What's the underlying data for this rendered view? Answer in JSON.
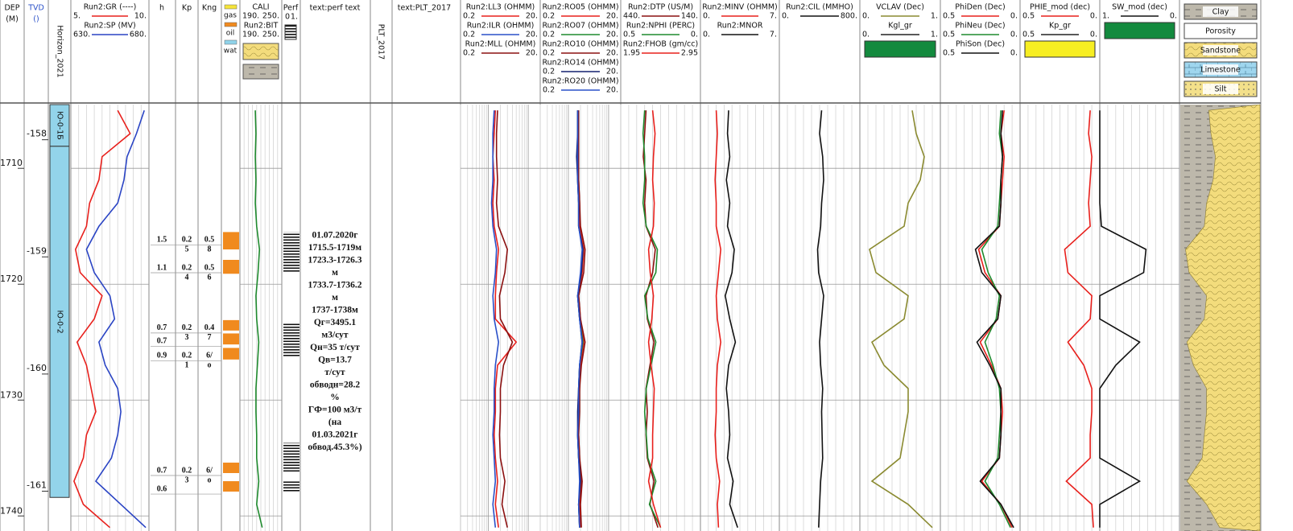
{
  "depth_track": {
    "title": "DEP",
    "unit": "(M)",
    "ticks": [
      1710,
      1720,
      1730,
      1740
    ]
  },
  "depth_range": [
    1704.5,
    1741.3
  ],
  "tvd_track": {
    "title": "TVD",
    "unit": "()",
    "lim": [
      -157.7,
      -161.34
    ],
    "ticks": [
      -158,
      -159,
      -160,
      -161
    ]
  },
  "horizon_track": {
    "title": "Horizon_2021",
    "color": "#93d4ea",
    "zones": [
      {
        "label": "Ю-0-1Б",
        "top": 1704.5,
        "base": 1708.1
      },
      {
        "label": "Ю-0-2",
        "top": 1708.1,
        "base": 1738.4
      }
    ]
  },
  "curve_depths": [
    1705,
    1707,
    1709,
    1711,
    1713,
    1715,
    1717,
    1719,
    1721,
    1723,
    1725,
    1727,
    1729,
    1731,
    1733,
    1735,
    1737,
    1739,
    1741
  ],
  "curve_tracks": [
    {
      "log": false,
      "curves": [
        {
          "name": "Run2:GR (----)",
          "color": "#e8201c",
          "scale": [
            {
              "value": 5,
              "label": "5."
            },
            {
              "value": 10,
              "label": "10."
            }
          ],
          "values": [
            8.0,
            8.8,
            7.0,
            6.8,
            6.2,
            6.0,
            5.3,
            5.6,
            7.0,
            6.5,
            5.4,
            6.0,
            6.3,
            6.6,
            6.0,
            5.8,
            5.2,
            5.8,
            7.5
          ]
        },
        {
          "name": "Run2:SP (MV)",
          "color": "#2a44c4",
          "scale": [
            {
              "value": 630,
              "label": "630."
            },
            {
              "value": 680,
              "label": "680."
            }
          ],
          "values": [
            677,
            672,
            666,
            664,
            660,
            648,
            640,
            645,
            655,
            658,
            648,
            652,
            660,
            662,
            660,
            656,
            646,
            662,
            678
          ]
        }
      ]
    },
    {
      "log": false,
      "curves": [
        {
          "name": "CALI",
          "color": "#1f8a2e",
          "scale": [
            {
              "value": 190,
              "label": "190."
            },
            {
              "value": 250,
              "label": "250."
            }
          ],
          "values": [
            212,
            213,
            212,
            213,
            212,
            214,
            218,
            216,
            213,
            214,
            217,
            215,
            213,
            213,
            214,
            214,
            217,
            214,
            222
          ]
        },
        {
          "name": "Run2:BIT",
          "color": "#222222",
          "scale": [
            {
              "value": 190,
              "label": "190."
            },
            {
              "value": 250,
              "label": "250."
            }
          ]
        }
      ]
    },
    {
      "log": true,
      "curves": [
        {
          "name": "Run2:LL3 (OHMM)",
          "color": "#e8201c",
          "scale": [
            0.2,
            {
              "value": 20,
              "label": "20."
            }
          ],
          "values": [
            1.5,
            1.4,
            1.3,
            1.4,
            1.3,
            1.4,
            1.8,
            1.6,
            1.5,
            1.5,
            5.0,
            1.7,
            1.5,
            1.5,
            1.4,
            1.5,
            1.7,
            1.5,
            1.8
          ]
        },
        {
          "name": "Run2:ILR (OHMM)",
          "color": "#2a50c8",
          "scale": [
            0.2,
            {
              "value": 20,
              "label": "20."
            }
          ],
          "values": [
            1.4,
            1.3,
            1.3,
            1.3,
            1.2,
            1.3,
            1.6,
            1.5,
            1.3,
            1.4,
            1.8,
            1.5,
            1.4,
            1.4,
            1.3,
            1.4,
            1.5,
            1.3,
            1.5
          ]
        },
        {
          "name": "Run2:MLL (OHMM)",
          "color": "#8b1010",
          "scale": [
            0.2,
            {
              "value": 20,
              "label": "20."
            }
          ],
          "values": [
            1.7,
            1.6,
            1.6,
            1.7,
            1.6,
            1.8,
            3.0,
            2.6,
            1.9,
            2.0,
            4.0,
            2.4,
            2.0,
            2.0,
            1.9,
            2.0,
            2.6,
            2.2,
            3.0
          ]
        }
      ]
    },
    {
      "log": true,
      "curves": [
        {
          "name": "Run2:RO05 (OHMM)",
          "color": "#e8201c",
          "scale": [
            0.2,
            {
              "value": 20,
              "label": "20."
            }
          ],
          "values": [
            1.8,
            1.8,
            1.7,
            1.8,
            1.9,
            1.9,
            2.4,
            2.2,
            1.8,
            2.0,
            2.4,
            2.0,
            1.9,
            1.8,
            1.8,
            1.9,
            2.1,
            1.9,
            2.0
          ]
        },
        {
          "name": "Run2:RO07 (OHMM)",
          "color": "#1f8a2e",
          "scale": [
            0.2,
            {
              "value": 20,
              "label": "20."
            }
          ],
          "values": [
            1.7,
            1.7,
            1.7,
            1.7,
            1.8,
            1.8,
            2.3,
            2.1,
            1.7,
            1.9,
            2.3,
            1.9,
            1.8,
            1.8,
            1.7,
            1.8,
            2.0,
            1.8,
            1.9
          ]
        },
        {
          "name": "Run2:RO10 (OHMM)",
          "color": "#8b1010",
          "scale": [
            0.2,
            {
              "value": 20,
              "label": "20."
            }
          ],
          "values": [
            1.8,
            1.8,
            1.8,
            1.8,
            1.9,
            2.0,
            2.6,
            2.4,
            1.8,
            2.0,
            2.6,
            2.1,
            1.9,
            1.9,
            1.8,
            1.9,
            2.2,
            2.0,
            2.1
          ]
        },
        {
          "name": "Run2:RO14 (OHMM)",
          "color": "#14206e",
          "scale": [
            0.2,
            {
              "value": 20,
              "label": "20."
            }
          ],
          "values": [
            1.7,
            1.7,
            1.6,
            1.7,
            1.8,
            1.8,
            2.3,
            2.1,
            1.7,
            1.9,
            2.2,
            1.9,
            1.8,
            1.7,
            1.7,
            1.8,
            2.0,
            1.8,
            1.9
          ]
        },
        {
          "name": "Run2:RO20 (OHMM)",
          "color": "#2a50c8",
          "scale": [
            0.2,
            {
              "value": 20,
              "label": "20."
            }
          ],
          "values": [
            1.7,
            1.7,
            1.7,
            1.7,
            1.8,
            1.8,
            2.2,
            2.0,
            1.7,
            1.9,
            2.2,
            1.9,
            1.8,
            1.8,
            1.7,
            1.8,
            1.9,
            1.8,
            1.9
          ]
        }
      ]
    },
    {
      "log": false,
      "curves": [
        {
          "name": "Run2:DTP (US/M)",
          "color": "#8b1010",
          "scale": [
            {
              "value": 440,
              "label": "440."
            },
            {
              "value": 140,
              "label": "140."
            }
          ],
          "values": [
            345,
            350,
            355,
            345,
            350,
            345,
            310,
            320,
            345,
            340,
            315,
            330,
            345,
            340,
            345,
            340,
            315,
            330,
            300
          ]
        },
        {
          "name": "Run2:NPHI (PERC)",
          "color": "#1f8a2e",
          "scale": [
            0.5,
            {
              "value": 0,
              "label": "0."
            }
          ],
          "values": [
            0.35,
            0.36,
            0.35,
            0.35,
            0.36,
            0.34,
            0.27,
            0.28,
            0.35,
            0.33,
            0.28,
            0.31,
            0.34,
            0.35,
            0.34,
            0.33,
            0.28,
            0.32,
            0.25
          ]
        },
        {
          "name": "Run2:FHOB (gm/cc)",
          "color": "#e8201c",
          "scale": [
            1.95,
            2.95
          ],
          "values": [
            2.35,
            2.38,
            2.36,
            2.35,
            2.37,
            2.36,
            2.3,
            2.32,
            2.36,
            2.34,
            2.3,
            2.33,
            2.37,
            2.36,
            2.35,
            2.35,
            2.3,
            2.36,
            2.45
          ]
        }
      ]
    },
    {
      "log": false,
      "curves": [
        {
          "name": "Run2:MINV (OHMM)",
          "color": "#e8201c",
          "scale": [
            {
              "value": 0,
              "label": "0."
            },
            {
              "value": 7,
              "label": "7."
            }
          ],
          "values": [
            1.4,
            1.5,
            1.4,
            1.3,
            1.4,
            1.4,
            1.8,
            1.6,
            1.4,
            1.5,
            1.8,
            1.5,
            1.4,
            1.4,
            1.3,
            1.4,
            1.7,
            1.5,
            1.6
          ]
        },
        {
          "name": "Run2:MNOR",
          "color": "#111111",
          "scale": [
            {
              "value": 0,
              "label": "0."
            },
            {
              "value": 7,
              "label": "7."
            }
          ],
          "values": [
            2.5,
            2.4,
            2.6,
            2.3,
            2.6,
            2.4,
            3.0,
            2.8,
            2.2,
            2.6,
            3.1,
            2.5,
            2.3,
            2.5,
            2.6,
            2.4,
            2.9,
            2.6,
            3.3
          ]
        }
      ]
    },
    {
      "log": false,
      "curves": [
        {
          "name": "Run2:CIL (MMHO)",
          "color": "#111111",
          "scale": [
            {
              "value": 0,
              "label": "0."
            },
            {
              "value": 800,
              "label": "800."
            }
          ],
          "values": [
            420,
            400,
            430,
            440,
            420,
            410,
            380,
            390,
            440,
            420,
            400,
            410,
            430,
            420,
            425,
            430,
            410,
            400,
            390
          ]
        }
      ]
    },
    {
      "log": false,
      "curves": [
        {
          "name": "VCLAV (Dec)",
          "color": "#8a8a30",
          "scale": [
            {
              "value": 0,
              "label": "0."
            },
            {
              "value": 1,
              "label": "1."
            }
          ],
          "values": [
            0.65,
            0.7,
            0.8,
            0.75,
            0.6,
            0.55,
            0.12,
            0.2,
            0.6,
            0.55,
            0.15,
            0.3,
            0.6,
            0.6,
            0.55,
            0.5,
            0.15,
            0.6,
            0.9
          ]
        }
      ],
      "fills": [
        {
          "name": "Kgl_gr",
          "color": "#138a3e",
          "scale": [
            {
              "value": 0,
              "label": "0."
            },
            {
              "value": 1,
              "label": "1."
            }
          ]
        }
      ]
    },
    {
      "log": false,
      "curves": [
        {
          "name": "PhiDen (Dec)",
          "color": "#e8201c",
          "scale": [
            0.5,
            {
              "value": 0,
              "label": "0."
            }
          ],
          "values": [
            0.1,
            0.12,
            0.1,
            0.11,
            0.12,
            0.13,
            0.26,
            0.22,
            0.12,
            0.14,
            0.25,
            0.18,
            0.12,
            0.11,
            0.12,
            0.13,
            0.24,
            0.12,
            0.05
          ]
        },
        {
          "name": "PhiNeu (Dec)",
          "color": "#1f8a2e",
          "scale": [
            0.5,
            {
              "value": 0,
              "label": "0."
            }
          ],
          "values": [
            0.12,
            0.13,
            0.11,
            0.12,
            0.13,
            0.14,
            0.24,
            0.2,
            0.13,
            0.15,
            0.22,
            0.17,
            0.13,
            0.12,
            0.13,
            0.14,
            0.22,
            0.13,
            0.06
          ]
        },
        {
          "name": "PhiSon (Dec)",
          "color": "#111111",
          "scale": [
            0.5,
            {
              "value": 0,
              "label": "0."
            }
          ],
          "values": [
            0.11,
            0.12,
            0.11,
            0.12,
            0.12,
            0.13,
            0.28,
            0.24,
            0.12,
            0.14,
            0.27,
            0.19,
            0.12,
            0.12,
            0.12,
            0.13,
            0.25,
            0.12,
            0.04
          ]
        }
      ]
    },
    {
      "log": false,
      "curves": [
        {
          "name": "PHIE_mod (dec)",
          "color": "#e8201c",
          "scale": [
            0.5,
            {
              "value": 0,
              "label": "0."
            }
          ],
          "values": [
            0.06,
            0.07,
            0.05,
            0.06,
            0.07,
            0.06,
            0.22,
            0.2,
            0.05,
            0.06,
            0.2,
            0.1,
            0.05,
            0.05,
            0.06,
            0.06,
            0.21,
            0.05,
            0.04
          ]
        }
      ],
      "fills": [
        {
          "name": "Kp_gr",
          "color": "#f7ee22",
          "scale": [
            0.5,
            {
              "value": 0,
              "label": "0."
            }
          ]
        }
      ]
    },
    {
      "log": false,
      "curves": [
        {
          "name": "SW_mod (dec)",
          "color": "#111111",
          "scale": [
            {
              "value": 1,
              "label": "1."
            },
            {
              "value": 0,
              "label": "0."
            }
          ],
          "values": [
            1,
            1,
            1,
            1,
            1,
            0.98,
            0.42,
            0.45,
            1,
            1,
            0.5,
            0.8,
            1,
            1,
            1,
            1,
            0.5,
            1,
            1
          ]
        }
      ],
      "fills": [
        {
          "color": "#138a3e"
        }
      ]
    }
  ],
  "h_column": {
    "title": "h"
  },
  "kp_column": {
    "title": "Kp"
  },
  "kng_column": {
    "title": "Kng"
  },
  "fluid_legend": [
    {
      "name": "gas",
      "color": "#f5e43a"
    },
    {
      "name": "oil",
      "color": "#f08a1e"
    },
    {
      "name": "wat",
      "color": "#8fd3ea"
    }
  ],
  "intervals": [
    {
      "top": 1715.5,
      "base": 1717.0,
      "h": "1.5",
      "kp": [
        "0.2",
        "5"
      ],
      "kng": [
        "0.5",
        "8"
      ]
    },
    {
      "top": 1717.9,
      "base": 1719.1,
      "h": "1.1",
      "kp": [
        "0.2",
        "4"
      ],
      "kng": [
        "0.5",
        "6"
      ]
    },
    {
      "top": 1723.1,
      "base": 1724.0,
      "h": "0.7",
      "kp": [
        "0.2",
        "3"
      ],
      "kng": [
        "0.4",
        "7"
      ]
    },
    {
      "top": 1724.25,
      "base": 1725.2,
      "h": "0.7"
    },
    {
      "top": 1725.5,
      "base": 1726.5,
      "h": "0.9",
      "kp": [
        "0.2",
        "1"
      ],
      "kng": [
        "6/",
        "o"
      ]
    },
    {
      "top": 1735.4,
      "base": 1736.3,
      "h": "0.7",
      "kp": [
        "0.2",
        "3"
      ],
      "kng": [
        "6/",
        "o"
      ]
    },
    {
      "top": 1737.0,
      "base": 1737.9,
      "h": "0.6"
    }
  ],
  "perf": {
    "title": "Perf",
    "scale": [
      0,
      {
        "value": 1,
        "label": "1."
      }
    ],
    "intervals": [
      [
        1715.5,
        1719
      ],
      [
        1723.3,
        1726.3
      ],
      [
        1733.7,
        1736.2
      ],
      [
        1737,
        1738
      ]
    ]
  },
  "perf_text": {
    "title": "text:perf text",
    "lines": [
      "01.07.2020г",
      "1715.5-1719м",
      "1723.3-1726.3",
      "м",
      "1733.7-1736.2",
      "м",
      "1737-1738м",
      "Qг=3495.1",
      "м3/сут",
      "Qн=35 т/сут",
      "Qв=13.7",
      "т/сут",
      "обводн=28.2",
      "%",
      "ГФ=100 м3/т",
      "(на",
      "01.03.2021г",
      "обвод.45.3%)"
    ]
  },
  "plt": {
    "title": "PLT_2017"
  },
  "plt_text": {
    "title": "text:PLT_2017"
  },
  "lithology": {
    "legend": [
      "Clay",
      "Porosity",
      "Sandstone",
      "Limestone",
      "Silt"
    ]
  }
}
